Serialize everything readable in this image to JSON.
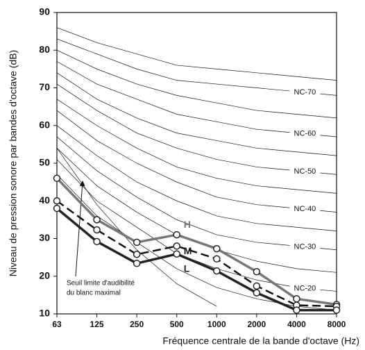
{
  "chart_data": {
    "type": "line",
    "x_label": "Fréquence centrale de la bande d'octave (Hz)",
    "y_label": "Niveau de pression sonore par bandes d'octave (dB)",
    "categories": [
      "63",
      "125",
      "250",
      "500",
      "1000",
      "2000",
      "4000",
      "8000"
    ],
    "ylim": [
      10,
      90
    ],
    "yticks": [
      10,
      20,
      30,
      40,
      50,
      60,
      70,
      80,
      90
    ],
    "series": [
      {
        "name": "H",
        "color": "#777777",
        "dash": false,
        "values": [
          46,
          35,
          29,
          31,
          27.3,
          21.2,
          14,
          12.5
        ]
      },
      {
        "name": "M",
        "color": "#111111",
        "dash": true,
        "values": [
          40,
          32.3,
          25.8,
          28,
          24.6,
          17.4,
          12.3,
          12
        ]
      },
      {
        "name": "L",
        "color": "#222222",
        "dash": false,
        "values": [
          38,
          29.2,
          23.4,
          25.9,
          21.4,
          15.6,
          11,
          11
        ]
      }
    ],
    "nc_curves": [
      {
        "values": [
          54,
          39,
          27,
          18,
          12,
          null,
          null,
          null
        ]
      },
      {
        "values": [
          47,
          36,
          29,
          22,
          17,
          14,
          12,
          11
        ]
      },
      {
        "name": "NC-20",
        "values": [
          51,
          40,
          33,
          26,
          22,
          19,
          17,
          16
        ]
      },
      {
        "values": [
          54,
          44,
          37,
          31,
          27,
          24,
          22,
          21
        ]
      },
      {
        "name": "NC-30",
        "values": [
          57,
          48,
          41,
          35,
          31,
          29,
          28,
          27
        ]
      },
      {
        "values": [
          60,
          52,
          45,
          40,
          36,
          34,
          33,
          32
        ]
      },
      {
        "name": "NC-40",
        "values": [
          64,
          56,
          50,
          45,
          41,
          39,
          38,
          37
        ]
      },
      {
        "values": [
          67,
          60,
          54,
          49,
          46,
          44,
          43,
          42
        ]
      },
      {
        "name": "NC-50",
        "values": [
          71,
          64,
          58,
          54,
          51,
          49,
          48,
          47
        ]
      },
      {
        "values": [
          74,
          67,
          62,
          58,
          56,
          54,
          53,
          52
        ]
      },
      {
        "name": "NC-60",
        "values": [
          77,
          71,
          67,
          63,
          61,
          59,
          58,
          57
        ]
      },
      {
        "values": [
          80,
          75,
          71,
          68,
          66,
          64,
          63,
          62
        ]
      },
      {
        "name": "NC-70",
        "values": [
          83,
          79,
          75,
          72,
          71,
          70,
          69,
          68
        ]
      },
      {
        "values": [
          86,
          82,
          79,
          76,
          75,
          74,
          73,
          72
        ]
      }
    ],
    "annotation": [
      "Seuil limite d'audibilité",
      "du blanc maximal"
    ]
  }
}
